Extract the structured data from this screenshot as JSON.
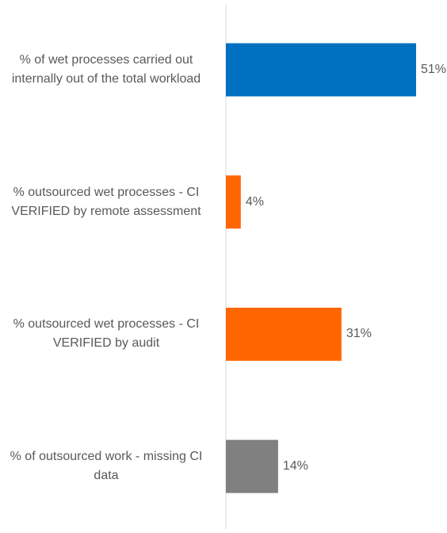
{
  "chart_data": {
    "type": "bar",
    "orientation": "horizontal",
    "categories": [
      "% of wet processes carried out internally out of the total workload",
      "% outsourced wet processes - CI VERIFIED by remote assessment",
      "% outsourced wet processes - CI VERIFIED by audit",
      "% of outsourced work - missing CI data"
    ],
    "values": [
      51,
      4,
      31,
      14
    ],
    "value_labels": [
      "51%",
      "4%",
      "31%",
      "14%"
    ],
    "colors": [
      "#0070C0",
      "#FF6600",
      "#FF6600",
      "#808080"
    ],
    "xlim": [
      0,
      51
    ],
    "grid": false,
    "legend": "none",
    "title": "",
    "xlabel": "",
    "ylabel": ""
  }
}
